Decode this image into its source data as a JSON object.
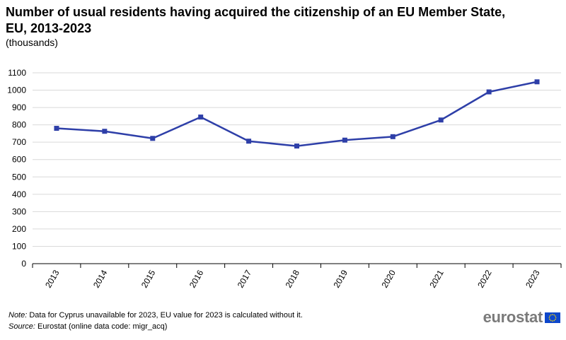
{
  "title": "Number of usual residents having acquired the citizenship of an EU Member State, EU, 2013-2023",
  "subtitle": "(thousands)",
  "note_label": "Note:",
  "note_text": "Data for Cyprus unavailable for 2023, EU value for 2023 is calculated without it.",
  "source_label": "Source:",
  "source_text": "Eurostat (online data code: migr_acq)",
  "logo_text": "eurostat",
  "colors": {
    "series": "#2e3fa8",
    "grid": "#d9d9d9",
    "axis": "#000000",
    "flag_blue": "#0e47cb",
    "flag_star": "#ffdd00"
  },
  "chart_data": {
    "type": "line",
    "title": "Number of usual residents having acquired the citizenship of an EU Member State, EU, 2013-2023",
    "subtitle": "(thousands)",
    "xlabel": "",
    "ylabel": "",
    "ylim": [
      0,
      1100
    ],
    "yticks": [
      0,
      100,
      200,
      300,
      400,
      500,
      600,
      700,
      800,
      900,
      1000,
      1100
    ],
    "grid": true,
    "legend": "none",
    "categories": [
      "2013",
      "2014",
      "2015",
      "2016",
      "2017",
      "2018",
      "2019",
      "2020",
      "2021",
      "2022",
      "2023"
    ],
    "series": [
      {
        "values": [
          780,
          763,
          722,
          845,
          706,
          678,
          712,
          732,
          828,
          990,
          1048
        ]
      }
    ]
  }
}
